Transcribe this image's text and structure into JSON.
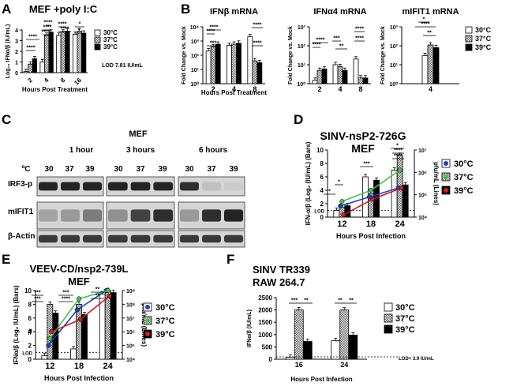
{
  "chart_data": [
    {
      "panel": "A",
      "type": "bar",
      "title": "MEF +poly I:C",
      "xlabel": "Hours Post Treatment",
      "ylabel": "Log₁₀ IFNα/β (IU/mL)",
      "categories": [
        "2",
        "4",
        "8",
        "16"
      ],
      "ylim": [
        0,
        4
      ],
      "yticks": [
        "0",
        "1",
        "2",
        "3",
        "4"
      ],
      "series": [
        {
          "name": "30°C",
          "values": [
            0.1,
            1.0,
            3.5,
            3.6
          ]
        },
        {
          "name": "37°C",
          "values": [
            0.8,
            3.5,
            3.8,
            3.9
          ]
        },
        {
          "name": "39°C",
          "values": [
            1.3,
            3.8,
            3.9,
            3.7
          ]
        }
      ],
      "legend": [
        "30°C",
        "37°C",
        "39°C"
      ],
      "annotation": "LOD 7.81 IU/mL",
      "sig": [
        "****",
        "****",
        "****",
        "*",
        "****",
        "****",
        "****",
        "*",
        "****"
      ]
    },
    {
      "panel": "B",
      "type": "bar",
      "title": "IFNβ mRNA",
      "xlabel": "Hours Post Treatment",
      "ylabel": "Fold Change vs. Mock",
      "categories": [
        "2",
        "4",
        "8"
      ],
      "yticks": [
        "10⁰",
        "10¹",
        "10²",
        "10³",
        "10⁴"
      ],
      "log_range": [
        0,
        4
      ],
      "series": [
        {
          "name": "30°C",
          "values": [
            200,
            500,
            2000
          ]
        },
        {
          "name": "37°C",
          "values": [
            400,
            600,
            40
          ]
        },
        {
          "name": "39°C",
          "values": [
            600,
            700,
            30
          ]
        }
      ],
      "sig": [
        "****",
        "****",
        "***",
        "****",
        "****"
      ]
    },
    {
      "panel": "B2",
      "type": "bar",
      "title": "IFNα4 mRNA",
      "ylabel": "Fold Change vs. Mock",
      "categories": [
        "2",
        "4",
        "8"
      ],
      "yticks": [
        "10⁰",
        "10¹",
        "10²",
        "10³"
      ],
      "log_range": [
        0,
        3
      ],
      "series": [
        {
          "name": "30°C",
          "values": [
            1.5,
            10,
            20
          ]
        },
        {
          "name": "37°C",
          "values": [
            5,
            8,
            2
          ]
        },
        {
          "name": "39°C",
          "values": [
            6,
            5,
            2
          ]
        }
      ],
      "sig": [
        "****",
        "****",
        "***",
        "**",
        "****",
        "****"
      ]
    },
    {
      "panel": "B3",
      "type": "bar",
      "title": "mIFIT1 mRNA",
      "ylabel": "Fold Change vs. Mock",
      "categories": [
        "4"
      ],
      "yticks": [
        "10⁰",
        "10¹",
        "10²",
        "10³"
      ],
      "log_range": [
        0,
        3
      ],
      "series": [
        {
          "name": "30°C",
          "values": [
            30
          ]
        },
        {
          "name": "37°C",
          "values": [
            110
          ]
        },
        {
          "name": "39°C",
          "values": [
            80
          ]
        }
      ],
      "legend": [
        "30°C",
        "37°C",
        "39°C"
      ],
      "sig": [
        "*",
        "****",
        "**"
      ]
    },
    {
      "panel": "D",
      "type": "bar+line",
      "title": "SINV-nsP2-726G",
      "subtitle": "MEF",
      "xlabel": "Hours Post Infection",
      "ylabel": "IFN-α/β (Log₂ (IU/mL) (Bars)",
      "y2label": "pfu/mL (Lines)",
      "categories": [
        "12",
        "18",
        "24"
      ],
      "ylim": [
        0,
        10
      ],
      "yticks": [
        "0",
        "2",
        "4",
        "6",
        "8",
        "10"
      ],
      "y2ticks": [
        "10⁴",
        "10⁵",
        "10⁶",
        "10⁷"
      ],
      "y2_log_range": [
        4,
        7
      ],
      "lod_label": "LOD",
      "bars": [
        {
          "name": "30°C",
          "values": [
            1.0,
            6.0,
            7.0
          ]
        },
        {
          "name": "37°C",
          "values": [
            1.5,
            3.5,
            9.2
          ]
        },
        {
          "name": "39°C",
          "values": [
            1.7,
            5.5,
            4.8
          ]
        }
      ],
      "lines": [
        {
          "name": "30°C",
          "values": [
            4.5,
            4.9,
            5.3
          ]
        },
        {
          "name": "37°C",
          "values": [
            4.7,
            5.2,
            6.1
          ]
        },
        {
          "name": "39°C",
          "values": [
            4.1,
            4.8,
            5.3
          ]
        }
      ],
      "legend": [
        "30°C",
        "37°C",
        "39°C"
      ],
      "sig": [
        "*",
        "*",
        "***",
        "*",
        "****",
        "****"
      ]
    },
    {
      "panel": "E",
      "type": "bar+line",
      "title": "VEEV-CD/nsp2-739L",
      "subtitle": "MEF",
      "xlabel": "Hours Post Infection",
      "ylabel": "IFNα/β (Log₂ IU/mL) (Bars)",
      "y2label": "pfu/mL (Lines)",
      "categories": [
        "12",
        "18",
        "24"
      ],
      "ylim": [
        0,
        10
      ],
      "yticks": [
        "0",
        "2",
        "4",
        "6",
        "8",
        "10"
      ],
      "y2ticks": [
        "10⁴",
        "10⁵",
        "10⁶",
        "10⁷",
        "10⁸",
        "10⁹"
      ],
      "y2_log_range": [
        4,
        9
      ],
      "lod_label": "LOD",
      "bars": [
        {
          "name": "30°C",
          "values": [
            0.5,
            1.5,
            9.5
          ]
        },
        {
          "name": "37°C",
          "values": [
            8.0,
            8.0,
            10.0
          ]
        },
        {
          "name": "39°C",
          "values": [
            6.7,
            6.5,
            9.7
          ]
        }
      ],
      "lines": [
        {
          "name": "30°C",
          "values": [
            5.0,
            7.6,
            9.0
          ]
        },
        {
          "name": "37°C",
          "values": [
            5.5,
            8.4,
            9.0
          ]
        },
        {
          "name": "39°C",
          "values": [
            6.0,
            6.9,
            8.6
          ]
        }
      ],
      "legend": [
        "30°C",
        "37°C",
        "39°C"
      ],
      "hash": "#",
      "sig": [
        "***",
        "***",
        "***",
        "****",
        "**",
        "**"
      ]
    },
    {
      "panel": "F",
      "type": "bar",
      "title": "SINV TR339",
      "subtitle": "RAW 264.7",
      "xlabel": "Hours Post Infection",
      "ylabel": "IFNα/β (IU/mL)",
      "categories": [
        "16",
        "24"
      ],
      "ylim": [
        0,
        2500
      ],
      "yticks": [
        "0",
        "500",
        "1000",
        "1500",
        "2000",
        "2500"
      ],
      "series": [
        {
          "name": "30°C",
          "values": [
            80,
            750
          ]
        },
        {
          "name": "37°C",
          "values": [
            2000,
            2000
          ]
        },
        {
          "name": "39°C",
          "values": [
            720,
            980
          ]
        }
      ],
      "legend": [
        "30°C",
        "37°C",
        "39°C"
      ],
      "annotation": "LOD= 3.9 IU/mL",
      "sig": [
        "***",
        "**",
        "**",
        "**"
      ]
    }
  ],
  "panel_letters": [
    "A",
    "B",
    "C",
    "D",
    "E",
    "F"
  ],
  "western": {
    "title": "MEF",
    "groups": [
      "1 hour",
      "3 hours",
      "6 hours"
    ],
    "temp_label": "ºC",
    "temps": [
      "30",
      "37",
      "39",
      "30",
      "37",
      "39",
      "30",
      "37",
      "39"
    ],
    "rows": [
      "IRF3-p",
      "mIFIT1",
      "β-Actin"
    ]
  }
}
